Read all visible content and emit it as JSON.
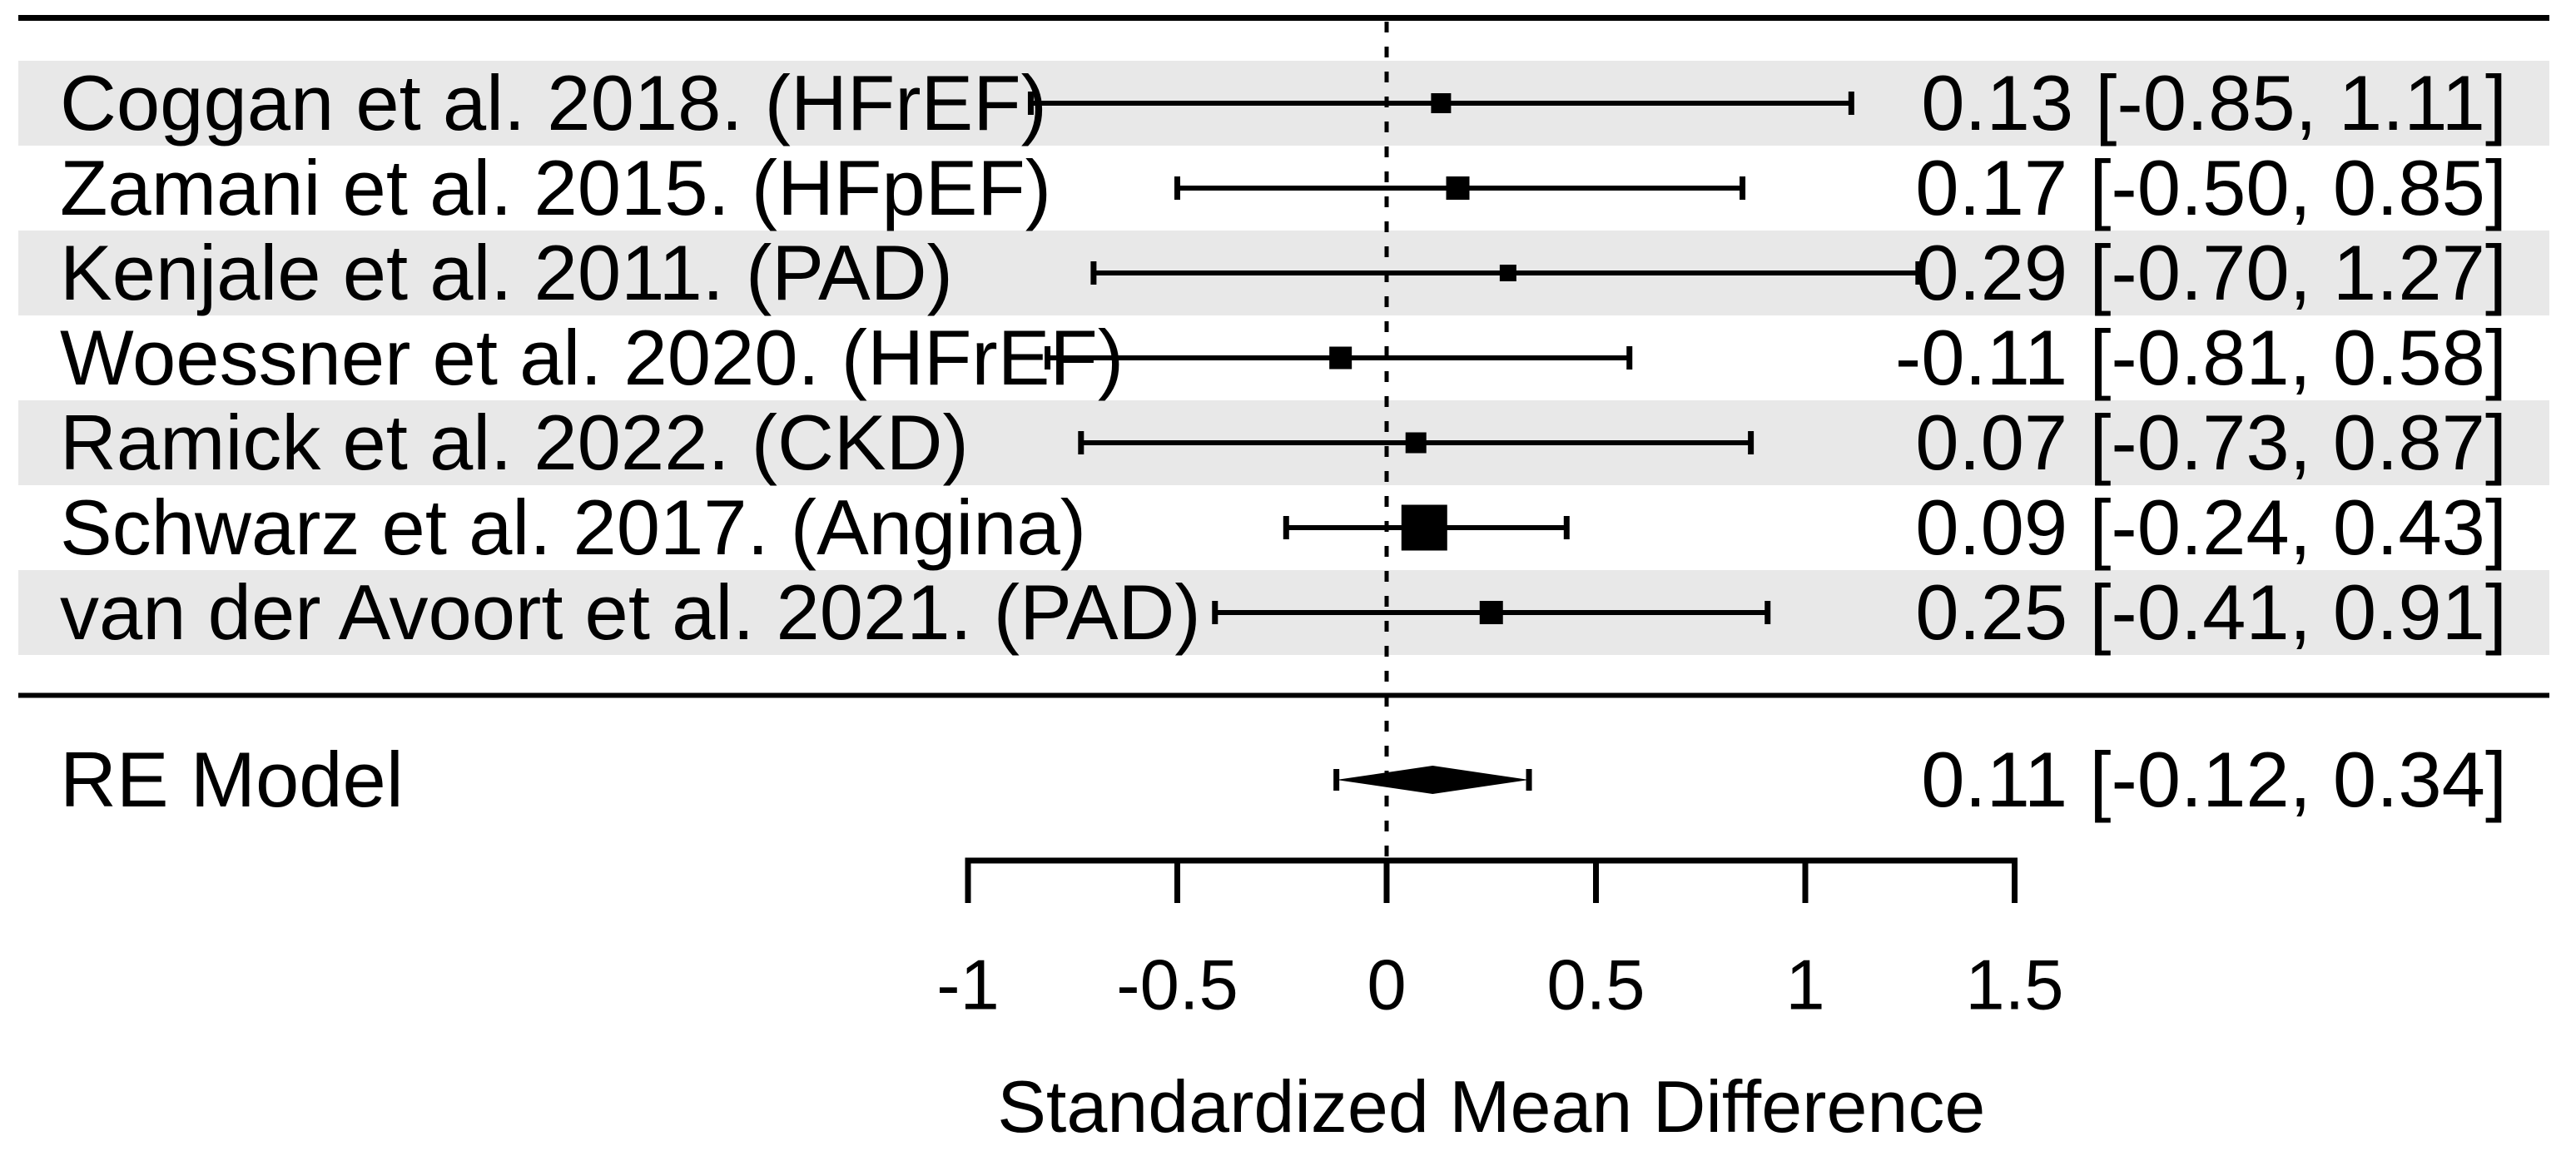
{
  "chart_data": {
    "type": "forest",
    "xlabel": "Standardized Mean Difference",
    "xlim": [
      -1,
      1.5
    ],
    "x_ticks": [
      -1,
      -0.5,
      0,
      0.5,
      1,
      1.5
    ],
    "x_tick_labels": [
      "-1",
      "-0.5",
      "0",
      "0.5",
      "1",
      "1.5"
    ],
    "zero_reference_line": 0,
    "grid": false,
    "studies": [
      {
        "label": "Coggan et al. 2018. (HFrEF)",
        "estimate": 0.13,
        "ci_lower": -0.85,
        "ci_upper": 1.11,
        "display": "0.13 [-0.85, 1.11]",
        "marker_size": 24,
        "shaded": true
      },
      {
        "label": "Zamani et al. 2015. (HFpEF)",
        "estimate": 0.17,
        "ci_lower": -0.5,
        "ci_upper": 0.85,
        "display": "0.17 [-0.50, 0.85]",
        "marker_size": 28,
        "shaded": false
      },
      {
        "label": "Kenjale et al. 2011. (PAD)",
        "estimate": 0.29,
        "ci_lower": -0.7,
        "ci_upper": 1.27,
        "display": "0.29 [-0.70, 1.27]",
        "marker_size": 20,
        "shaded": true
      },
      {
        "label": "Woessner et al. 2020. (HFrEF)",
        "estimate": -0.11,
        "ci_lower": -0.81,
        "ci_upper": 0.58,
        "display": "-0.11 [-0.81, 0.58]",
        "marker_size": 27,
        "shaded": false
      },
      {
        "label": "Ramick et al. 2022. (CKD)",
        "estimate": 0.07,
        "ci_lower": -0.73,
        "ci_upper": 0.87,
        "display": "0.07 [-0.73, 0.87]",
        "marker_size": 25,
        "shaded": true
      },
      {
        "label": "Schwarz et al. 2017. (Angina)",
        "estimate": 0.09,
        "ci_lower": -0.24,
        "ci_upper": 0.43,
        "display": "0.09 [-0.24, 0.43]",
        "marker_size": 55,
        "shaded": false
      },
      {
        "label": "van der Avoort et al. 2021. (PAD)",
        "estimate": 0.25,
        "ci_lower": -0.41,
        "ci_upper": 0.91,
        "display": "0.25 [-0.41, 0.91]",
        "marker_size": 28,
        "shaded": true
      }
    ],
    "summary": {
      "label": "RE Model",
      "estimate": 0.11,
      "ci_lower": -0.12,
      "ci_upper": 0.34,
      "display": "0.11 [-0.12, 0.34]"
    },
    "colors": {
      "ink": "#000000",
      "row_shade": "#e8e8e8",
      "background": "#ffffff"
    }
  }
}
